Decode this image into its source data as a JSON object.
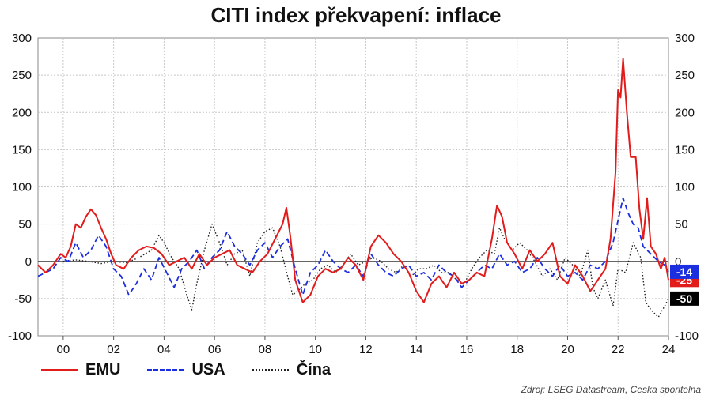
{
  "chart_data": {
    "type": "line",
    "title": "CITI index překvapení: inflace",
    "xlabel": "",
    "ylabel": "",
    "xlim": [
      1999.0,
      2024.0
    ],
    "ylim": [
      -100,
      300
    ],
    "y_ticks": [
      -100,
      -50,
      0,
      50,
      100,
      150,
      200,
      250,
      300
    ],
    "x_ticks": [
      2000,
      2002,
      2004,
      2006,
      2008,
      2010,
      2012,
      2014,
      2016,
      2018,
      2020,
      2022,
      2024
    ],
    "x_tick_labels": [
      "00",
      "02",
      "04",
      "06",
      "08",
      "10",
      "12",
      "14",
      "16",
      "18",
      "20",
      "22",
      "24"
    ],
    "grid": true,
    "legend": "bottom-left",
    "series": [
      {
        "name": "EMU",
        "color": "#e21b1b",
        "style": "solid",
        "last_label": "-25",
        "x": [
          1999.0,
          1999.3,
          1999.6,
          1999.9,
          2000.1,
          2000.3,
          2000.5,
          2000.7,
          2000.9,
          2001.1,
          2001.3,
          2001.5,
          2001.7,
          2001.9,
          2002.1,
          2002.4,
          2002.7,
          2003.0,
          2003.3,
          2003.6,
          2003.9,
          2004.2,
          2004.5,
          2004.8,
          2005.1,
          2005.4,
          2005.7,
          2006.0,
          2006.3,
          2006.6,
          2006.9,
          2007.2,
          2007.5,
          2007.8,
          2008.1,
          2008.4,
          2008.7,
          2008.85,
          2009.0,
          2009.2,
          2009.5,
          2009.8,
          2010.1,
          2010.4,
          2010.7,
          2011.0,
          2011.3,
          2011.6,
          2011.9,
          2012.2,
          2012.5,
          2012.8,
          2013.1,
          2013.4,
          2013.7,
          2014.0,
          2014.3,
          2014.6,
          2014.9,
          2015.2,
          2015.5,
          2015.8,
          2016.1,
          2016.4,
          2016.7,
          2017.0,
          2017.2,
          2017.4,
          2017.6,
          2017.9,
          2018.2,
          2018.5,
          2018.8,
          2019.1,
          2019.4,
          2019.7,
          2020.0,
          2020.3,
          2020.6,
          2020.9,
          2021.2,
          2021.5,
          2021.7,
          2021.9,
          2022.0,
          2022.1,
          2022.2,
          2022.35,
          2022.5,
          2022.7,
          2022.85,
          2023.0,
          2023.15,
          2023.3,
          2023.5,
          2023.7,
          2023.85,
          2024.0
        ],
        "values": [
          -5,
          -15,
          -5,
          10,
          5,
          20,
          50,
          45,
          60,
          70,
          62,
          45,
          30,
          10,
          -5,
          -10,
          5,
          15,
          20,
          18,
          10,
          -5,
          0,
          5,
          -10,
          10,
          -5,
          5,
          10,
          15,
          -5,
          -10,
          -15,
          0,
          10,
          30,
          50,
          72,
          35,
          -25,
          -55,
          -45,
          -20,
          -10,
          -15,
          -10,
          5,
          -5,
          -25,
          20,
          35,
          25,
          10,
          0,
          -15,
          -40,
          -55,
          -30,
          -20,
          -35,
          -15,
          -30,
          -25,
          -15,
          -20,
          30,
          75,
          60,
          25,
          10,
          -10,
          15,
          0,
          10,
          25,
          -20,
          -30,
          -5,
          -20,
          -40,
          -25,
          -10,
          30,
          120,
          230,
          220,
          272,
          200,
          140,
          140,
          70,
          30,
          85,
          20,
          10,
          -10,
          5,
          -25
        ]
      },
      {
        "name": "USA",
        "color": "#1c2fe0",
        "style": "dashed",
        "last_label": "-14",
        "x": [
          1999.0,
          1999.3,
          1999.6,
          1999.9,
          2000.2,
          2000.5,
          2000.8,
          2001.1,
          2001.4,
          2001.7,
          2002.0,
          2002.3,
          2002.6,
          2002.9,
          2003.2,
          2003.5,
          2003.8,
          2004.1,
          2004.4,
          2004.7,
          2005.0,
          2005.3,
          2005.6,
          2005.9,
          2006.2,
          2006.5,
          2006.8,
          2007.1,
          2007.4,
          2007.7,
          2008.0,
          2008.3,
          2008.6,
          2008.9,
          2009.2,
          2009.5,
          2009.8,
          2010.1,
          2010.4,
          2010.7,
          2011.0,
          2011.3,
          2011.6,
          2011.9,
          2012.2,
          2012.5,
          2012.8,
          2013.1,
          2013.4,
          2013.7,
          2014.0,
          2014.3,
          2014.6,
          2014.9,
          2015.2,
          2015.5,
          2015.8,
          2016.1,
          2016.4,
          2016.7,
          2017.0,
          2017.3,
          2017.6,
          2017.9,
          2018.2,
          2018.5,
          2018.8,
          2019.1,
          2019.4,
          2019.7,
          2020.0,
          2020.3,
          2020.6,
          2020.9,
          2021.2,
          2021.5,
          2021.8,
          2022.0,
          2022.2,
          2022.4,
          2022.6,
          2022.8,
          2023.0,
          2023.3,
          2023.6,
          2023.85,
          2024.0
        ],
        "values": [
          -20,
          -15,
          -10,
          5,
          0,
          25,
          5,
          15,
          35,
          20,
          -10,
          -20,
          -45,
          -30,
          -10,
          -25,
          5,
          -15,
          -35,
          -10,
          0,
          15,
          -10,
          5,
          15,
          40,
          20,
          10,
          -5,
          15,
          25,
          5,
          20,
          30,
          -10,
          -45,
          -15,
          -5,
          15,
          0,
          -10,
          -15,
          -5,
          -20,
          10,
          -5,
          -15,
          -20,
          -10,
          -5,
          -20,
          -15,
          -25,
          -5,
          -15,
          -20,
          -35,
          -25,
          -15,
          -5,
          -10,
          10,
          -5,
          0,
          -15,
          -10,
          5,
          -10,
          -20,
          -5,
          -20,
          -15,
          -25,
          -5,
          -10,
          0,
          25,
          55,
          85,
          65,
          50,
          45,
          20,
          10,
          0,
          -5,
          -14
        ]
      },
      {
        "name": "Čína",
        "color": "#222222",
        "style": "dotted",
        "last_label": "-50",
        "x": [
          2000.0,
          2000.5,
          2001.0,
          2001.5,
          2002.0,
          2002.5,
          2003.0,
          2003.5,
          2003.8,
          2004.0,
          2004.3,
          2004.6,
          2004.9,
          2005.1,
          2005.3,
          2005.6,
          2005.9,
          2006.2,
          2006.5,
          2006.8,
          2007.1,
          2007.4,
          2007.7,
          2008.0,
          2008.3,
          2008.6,
          2008.9,
          2009.1,
          2009.3,
          2009.6,
          2009.9,
          2010.2,
          2010.5,
          2010.8,
          2011.1,
          2011.4,
          2011.7,
          2012.0,
          2012.3,
          2012.6,
          2012.9,
          2013.2,
          2013.5,
          2013.8,
          2014.1,
          2014.4,
          2014.7,
          2015.0,
          2015.3,
          2015.6,
          2015.9,
          2016.2,
          2016.5,
          2016.8,
          2017.1,
          2017.3,
          2017.5,
          2017.8,
          2018.1,
          2018.4,
          2018.7,
          2019.0,
          2019.3,
          2019.6,
          2019.9,
          2020.2,
          2020.5,
          2020.8,
          2021.0,
          2021.2,
          2021.5,
          2021.8,
          2022.0,
          2022.3,
          2022.6,
          2022.9,
          2023.1,
          2023.3,
          2023.6,
          2023.85,
          2024.0
        ],
        "values": [
          0,
          2,
          0,
          -3,
          0,
          -2,
          5,
          15,
          35,
          25,
          5,
          -10,
          -45,
          -65,
          -30,
          15,
          50,
          25,
          -5,
          10,
          15,
          -20,
          25,
          40,
          45,
          20,
          -20,
          -45,
          -40,
          -30,
          -25,
          -10,
          -5,
          -15,
          -5,
          10,
          -5,
          0,
          5,
          0,
          -10,
          -15,
          -5,
          -20,
          -10,
          -10,
          -5,
          -15,
          -15,
          -25,
          -30,
          -10,
          5,
          15,
          10,
          45,
          30,
          15,
          25,
          15,
          0,
          -20,
          -10,
          -25,
          5,
          -5,
          -20,
          15,
          -35,
          -50,
          -25,
          -60,
          -10,
          -15,
          25,
          5,
          -55,
          -65,
          -75,
          -60,
          -50
        ]
      }
    ]
  },
  "source_note": "Zdroj: LSEG Datastream, Ceska sporitelna"
}
